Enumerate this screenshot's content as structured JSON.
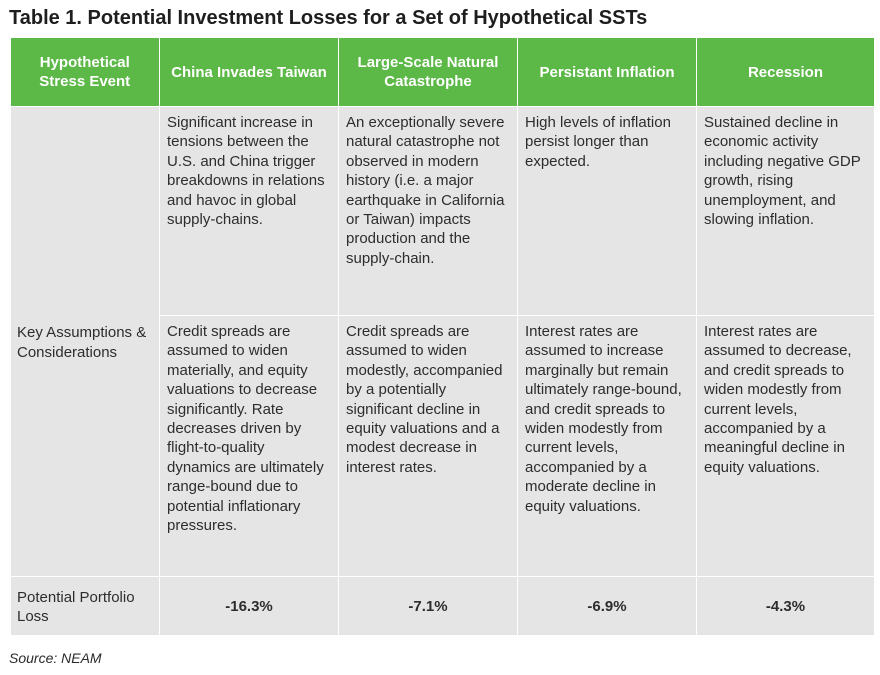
{
  "title": "Table 1. Potential Investment Losses for a Set of Hypothetical SSTs",
  "headers": [
    "Hypothetical Stress Event",
    "China Invades Taiwan",
    "Large-Scale Natural Catastrophe",
    "Persistant Inflation",
    "Recession"
  ],
  "row_label_assumptions": "Key Assumptions & Considerations",
  "assumptions_row1": [
    "Significant increase in tensions between the U.S. and China trigger breakdowns in relations and havoc in global supply-chains.",
    "An exceptionally severe natural catastrophe not observed in modern history (i.e. a major earthquake in California or Taiwan) impacts production and the supply-chain.",
    "High levels of inflation persist longer than expected.",
    "Sustained decline in economic activity including negative GDP growth, rising unemployment, and slowing inflation."
  ],
  "assumptions_row2": [
    "Credit spreads are assumed to widen materially, and equity valuations to decrease significantly. Rate decreases driven by flight-to-quality dynamics are ultimately range-bound due to potential inflationary pressures.",
    "Credit spreads are assumed to widen modestly, accompanied by a potentially significant decline in equity valuations and a modest decrease in interest rates.",
    "Interest rates are assumed to increase marginally but remain ultimately range-bound, and credit spreads to widen modestly from current levels, accompanied by a moderate decline in equity valuations.",
    "Interest rates are assumed to decrease, and credit spreads to widen modestly from current levels, accompanied by a meaningful decline in equity valuations."
  ],
  "row_label_loss": "Potential Portfolio Loss",
  "losses": [
    "-16.3%",
    "-7.1%",
    "-6.9%",
    "-4.3%"
  ],
  "source": "Source: NEAM"
}
